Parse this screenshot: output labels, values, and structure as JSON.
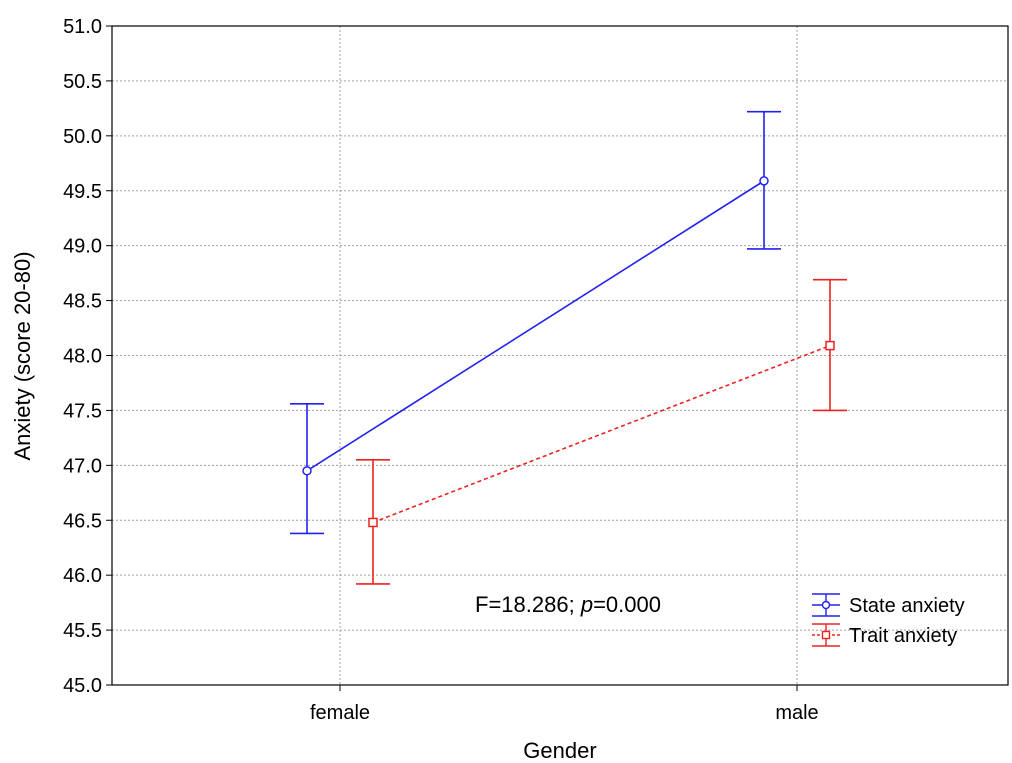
{
  "chart_data": {
    "type": "line",
    "title": "",
    "xlabel": "Gender",
    "ylabel": "Anxiety (score 20-80)",
    "categories": [
      "female",
      "male"
    ],
    "ylim": [
      45.0,
      51.0
    ],
    "yticks": [
      "45.0",
      "45.5",
      "46.0",
      "46.5",
      "47.0",
      "47.5",
      "48.0",
      "48.5",
      "49.0",
      "49.5",
      "50.0",
      "50.5",
      "51.0"
    ],
    "grid": true,
    "legend_position": "bottom-right",
    "annotation": {
      "prefix": "F=18.286; ",
      "italic": "p",
      "suffix": "=0.000"
    },
    "series": [
      {
        "name": "State anxiety",
        "color": "#2222ee",
        "marker": "circle",
        "line_style": "solid",
        "values": [
          46.95,
          49.59
        ],
        "err_low": [
          46.38,
          48.97
        ],
        "err_high": [
          47.56,
          50.22
        ]
      },
      {
        "name": "Trait anxiety",
        "color": "#ee2222",
        "marker": "square",
        "line_style": "dashed",
        "values": [
          46.48,
          48.09
        ],
        "err_low": [
          45.92,
          47.5
        ],
        "err_high": [
          47.05,
          48.69
        ]
      }
    ]
  }
}
